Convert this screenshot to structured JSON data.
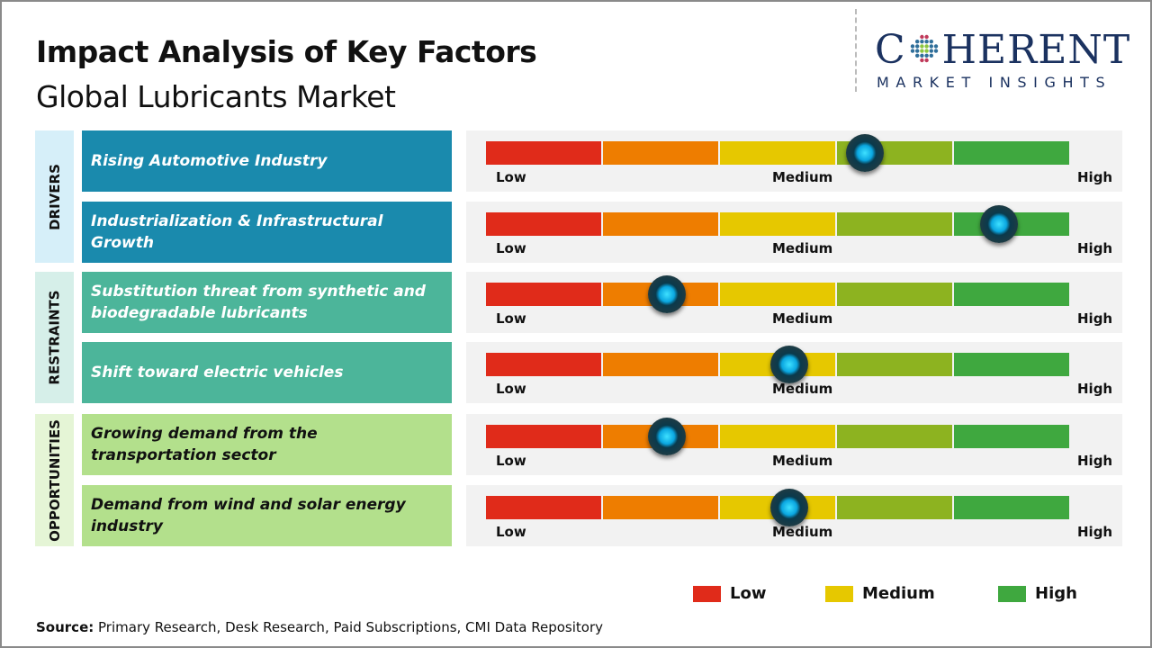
{
  "title": "Impact Analysis of Key Factors",
  "subtitle": "Global Lubricants Market",
  "logo": {
    "text": "COHERENT",
    "tagline": "MARKET INSIGHTS"
  },
  "colors": {
    "low": "#e02b1a",
    "low_medium": "#ee7d00",
    "medium": "#e6c800",
    "medium_high": "#8db320",
    "high": "#3fa83f",
    "drivers": "#1a8aad",
    "restraints": "#4cb59a",
    "opportunities": "#b3e08c"
  },
  "scale_labels": {
    "low": "Low",
    "medium": "Medium",
    "high": "High"
  },
  "chart_data": {
    "type": "gauge",
    "scale": [
      "Low",
      "Medium",
      "High"
    ],
    "categories": [
      {
        "name": "DRIVERS",
        "factors": [
          {
            "label": "Rising Automotive Industry",
            "impact_pct": 65
          },
          {
            "label": "Industrialization & Infrastructural Growth",
            "impact_pct": 88
          }
        ]
      },
      {
        "name": "RESTRAINTS",
        "factors": [
          {
            "label": "Substitution threat from synthetic and biodegradable lubricants",
            "impact_pct": 31
          },
          {
            "label": "Shift toward electric vehicles",
            "impact_pct": 52
          }
        ]
      },
      {
        "name": "OPPORTUNITIES",
        "factors": [
          {
            "label": "Growing demand from the transportation sector",
            "impact_pct": 31
          },
          {
            "label": "Demand from wind and solar energy industry",
            "impact_pct": 52
          }
        ]
      }
    ],
    "legend": [
      {
        "label": "Low",
        "color": "#e02b1a"
      },
      {
        "label": "Medium",
        "color": "#e6c800"
      },
      {
        "label": "High",
        "color": "#3fa83f"
      }
    ]
  },
  "source": {
    "label": "Source:",
    "text": " Primary Research, Desk Research, Paid Subscriptions, CMI Data Repository"
  }
}
